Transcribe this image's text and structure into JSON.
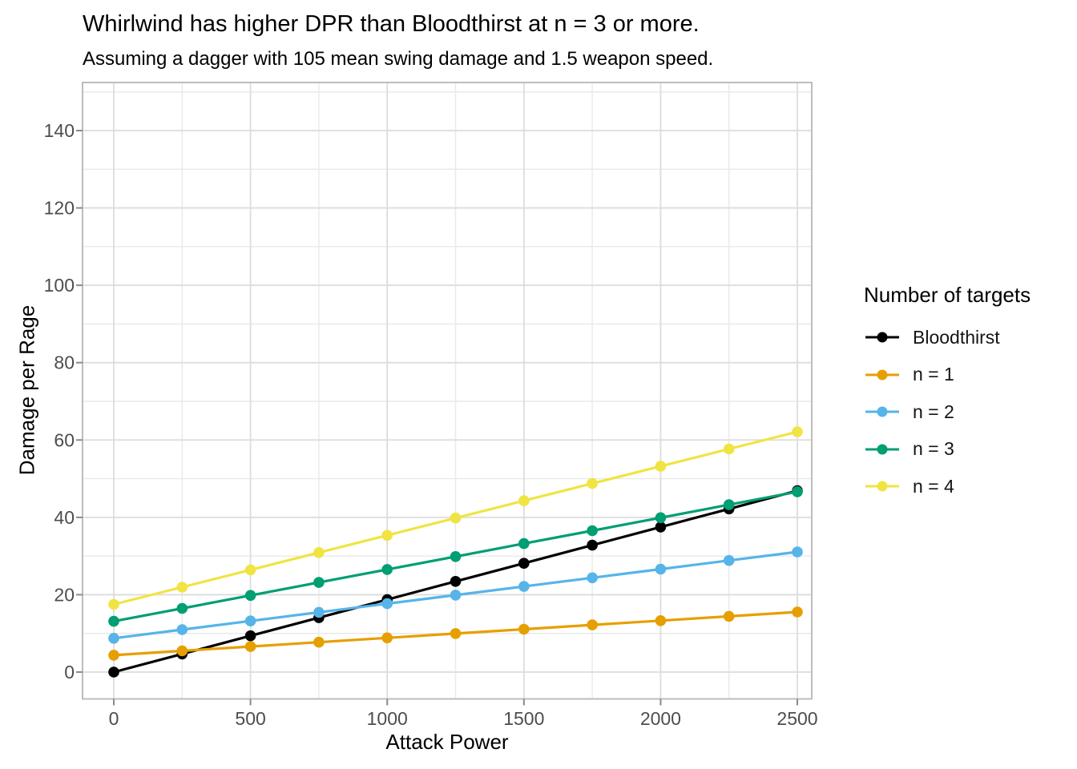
{
  "chart_data": {
    "type": "line",
    "title": "Whirlwind has higher DPR than Bloodthirst at n = 3 or more.",
    "subtitle": "Assuming a dagger with 105 mean swing damage and 1.5 weapon speed.",
    "xlabel": "Attack Power",
    "ylabel": "Damage per Rage",
    "legend_title": "Number of targets",
    "legend_position": "right",
    "grid": "major+minor",
    "xlim": [
      0,
      2500
    ],
    "ylim": [
      0,
      150
    ],
    "x_ticks": [
      0,
      500,
      1000,
      1500,
      2000,
      2500
    ],
    "x_minor_ticks": [
      250,
      750,
      1250,
      1750,
      2250
    ],
    "y_ticks": [
      0,
      20,
      40,
      60,
      80,
      100,
      120,
      140
    ],
    "y_minor_ticks": [
      10,
      30,
      50,
      70,
      90,
      110,
      130,
      150
    ],
    "x": [
      0,
      250,
      500,
      750,
      1000,
      1250,
      1500,
      1750,
      2000,
      2250,
      2500
    ],
    "series": [
      {
        "name": "Bloodthirst",
        "color": "#000000",
        "values": [
          0,
          4.69,
          9.38,
          14.06,
          18.75,
          23.44,
          28.13,
          32.81,
          37.5,
          42.19,
          46.88
        ]
      },
      {
        "name": "n = 1",
        "color": "#E69F00",
        "values": [
          4.38,
          5.49,
          6.61,
          7.72,
          8.84,
          9.96,
          11.07,
          12.19,
          13.3,
          14.42,
          15.54
        ]
      },
      {
        "name": "n = 2",
        "color": "#56B4E9",
        "values": [
          8.75,
          10.98,
          13.21,
          15.45,
          17.68,
          19.91,
          22.14,
          24.38,
          26.61,
          28.84,
          31.07
        ]
      },
      {
        "name": "n = 3",
        "color": "#009E73",
        "values": [
          13.13,
          16.47,
          19.82,
          23.17,
          26.52,
          29.87,
          33.21,
          36.56,
          39.91,
          43.26,
          46.61
        ]
      },
      {
        "name": "n = 4",
        "color": "#F0E442",
        "values": [
          17.5,
          21.96,
          26.43,
          30.89,
          35.36,
          39.82,
          44.29,
          48.75,
          53.21,
          57.68,
          62.14
        ]
      }
    ]
  },
  "style": {
    "background": "#ffffff",
    "grid_major_color": "#dcdcdc",
    "grid_minor_color": "#e9e9e9",
    "panel_border_color": "#bdbdbd",
    "tick_color": "#8a8a8a",
    "tick_label_color": "#4d4d4d",
    "text_color": "#000000"
  }
}
